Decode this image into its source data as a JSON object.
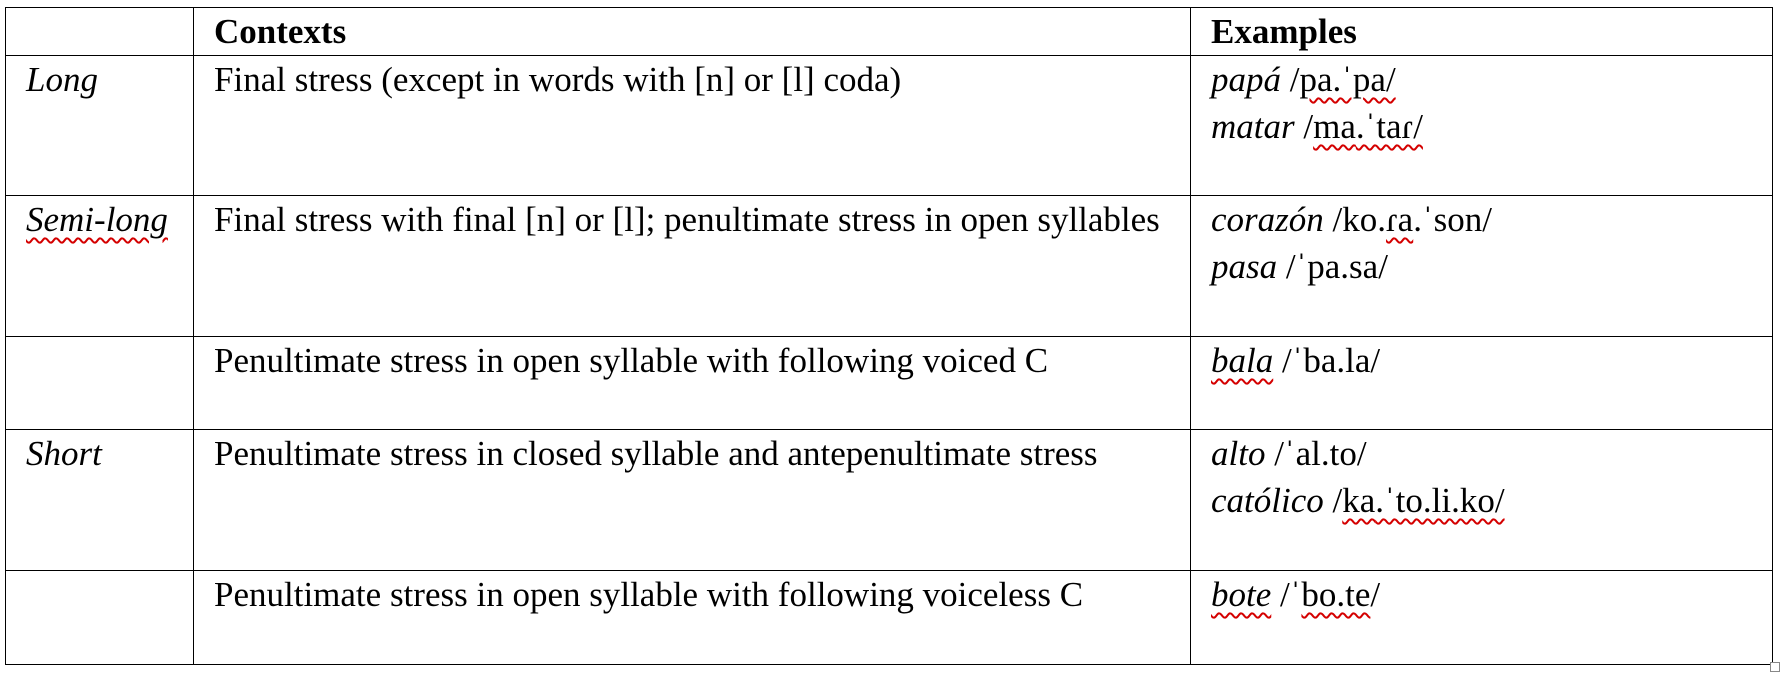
{
  "table": {
    "header": {
      "category": "",
      "contexts": "Contexts",
      "examples": "Examples"
    },
    "rows": [
      {
        "category": "Long",
        "context": "Final stress (except in words with [n] or [l] coda)",
        "examples": [
          {
            "word": "papá",
            "ipa_pre": " /",
            "ipa_sq": "pa",
            "ipa_post": ".ˈpa/"
          },
          {
            "word": "matar",
            "ipa_pre": " /",
            "ipa_sq": "ma",
            "ipa_post": ".ˈtaɾ/"
          }
        ]
      },
      {
        "category": "Semi-long",
        "context": "Final stress with final [n] or [l]; penultimate stress in open syllables",
        "examples": [
          {
            "word": "corazón",
            "ipa_pre": " /ko.",
            "ipa_sq": "ɾa",
            "ipa_post": ".ˈson/"
          },
          {
            "word": "pasa",
            "ipa_pre": " /ˈpa.sa/",
            "ipa_sq": "",
            "ipa_post": ""
          }
        ]
      },
      {
        "category": "",
        "context": "Penultimate stress in open syllable with following voiced C",
        "examples": [
          {
            "word": "bala",
            "ipa_pre": " /ˈba.la/",
            "ipa_sq": "",
            "ipa_post": ""
          }
        ]
      },
      {
        "category": "Short",
        "context": "Penultimate stress in closed syllable and antepenultimate stress",
        "examples": [
          {
            "word": "alto",
            "ipa_pre": " /ˈal.to/",
            "ipa_sq": "",
            "ipa_post": ""
          },
          {
            "word": "católico",
            "ipa_pre": " /",
            "ipa_sq": "ka",
            "ipa_post": ".ˈto.li.ko/"
          }
        ]
      },
      {
        "category": "",
        "context": "Penultimate stress in open syllable with following voiceless C",
        "examples": [
          {
            "word": "bote",
            "ipa_pre": " /ˈ",
            "ipa_sq": "bo.te",
            "ipa_post": "/"
          }
        ]
      }
    ]
  }
}
